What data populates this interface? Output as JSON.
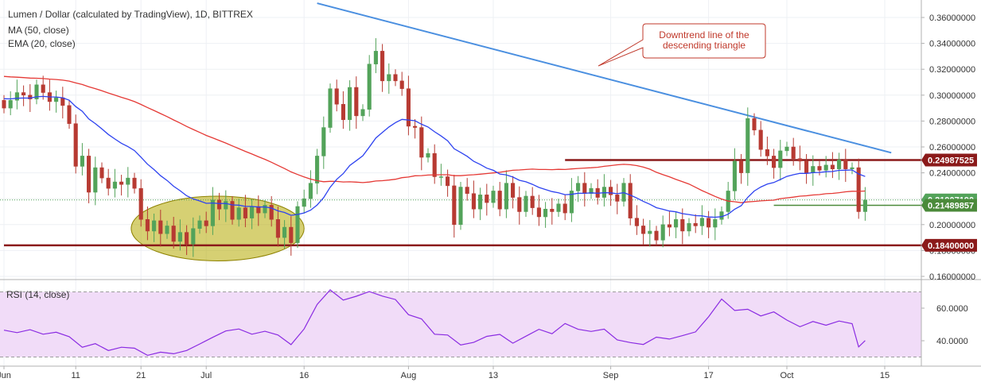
{
  "header": {
    "title": "Lumen / Dollar (calculated by TradingView), 1D, BITTREX",
    "ma_label": "MA (50, close)",
    "ema_label": "EMA (20, close)"
  },
  "annotation": {
    "text_line1": "Downtrend line of the",
    "text_line2": "descending triangle"
  },
  "colors": {
    "up": "#53a35a",
    "down": "#b73a32",
    "ma": "#e53935",
    "ema": "#2e43f0",
    "trendline": "#4a8fe0",
    "support_resistance": "#8b1a1a",
    "green_line": "#4b8a3a",
    "ellipse_fill": "#b5a900",
    "rsi_line": "#8a2be2",
    "rsi_fill": "#f1dcf8"
  },
  "chart_data": [
    {
      "type": "candlestick",
      "title": "Lumen / Dollar (calculated by TradingView), 1D, BITTREX",
      "x_tick_labels": [
        "Jun",
        "11",
        "21",
        "Jul",
        "16",
        "Aug",
        "13",
        "Sep",
        "17",
        "Oct",
        "15"
      ],
      "y_tick_labels": [
        "0.36000000",
        "0.34000000",
        "0.32000000",
        "0.30000000",
        "0.28000000",
        "0.26000000",
        "0.24000000",
        "0.22000000",
        "0.20000000",
        "0.18000000",
        "0.16000000"
      ],
      "ylim": [
        0.152,
        0.368
      ],
      "grid": true,
      "price_labels": [
        {
          "value": 0.24987525,
          "text": "0.24987525",
          "kind": "resistance"
        },
        {
          "value": 0.2190719,
          "text": "0.21907190",
          "kind": "last"
        },
        {
          "value": 0.21489857,
          "text": "0.21489857",
          "kind": "level"
        },
        {
          "value": 0.184,
          "text": "0.18400000",
          "kind": "support"
        }
      ],
      "horizontal_lines": [
        {
          "name": "resistance",
          "value": 0.2499,
          "from_day": 86,
          "to_day": 135
        },
        {
          "name": "support",
          "value": 0.184,
          "from_day": 0,
          "to_day": 135
        },
        {
          "name": "minor",
          "value": 0.2149,
          "from_day": 118,
          "to_day": 135
        }
      ],
      "trendline": {
        "day1": 48,
        "value1": 0.371,
        "day2": 136,
        "value2": 0.2555
      },
      "highlight_ellipse": {
        "day_from": 19.5,
        "day_to": 46,
        "value_from": 0.172,
        "value_to": 0.222
      },
      "candles_close": [
        0.29,
        0.296,
        0.302,
        0.3,
        0.297,
        0.308,
        0.302,
        0.295,
        0.298,
        0.292,
        0.278,
        0.245,
        0.253,
        0.225,
        0.244,
        0.236,
        0.228,
        0.233,
        0.231,
        0.236,
        0.228,
        0.204,
        0.195,
        0.203,
        0.193,
        0.199,
        0.187,
        0.194,
        0.185,
        0.197,
        0.203,
        0.199,
        0.219,
        0.212,
        0.218,
        0.204,
        0.213,
        0.205,
        0.214,
        0.209,
        0.215,
        0.204,
        0.19,
        0.198,
        0.186,
        0.214,
        0.22,
        0.232,
        0.253,
        0.275,
        0.305,
        0.293,
        0.281,
        0.306,
        0.284,
        0.289,
        0.324,
        0.334,
        0.311,
        0.316,
        0.311,
        0.305,
        0.276,
        0.275,
        0.252,
        0.255,
        0.237,
        0.237,
        0.23,
        0.2,
        0.229,
        0.224,
        0.212,
        0.223,
        0.217,
        0.226,
        0.212,
        0.232,
        0.221,
        0.21,
        0.222,
        0.213,
        0.206,
        0.212,
        0.21,
        0.216,
        0.209,
        0.226,
        0.232,
        0.224,
        0.228,
        0.221,
        0.229,
        0.223,
        0.218,
        0.232,
        0.205,
        0.199,
        0.193,
        0.195,
        0.188,
        0.2,
        0.198,
        0.204,
        0.195,
        0.201,
        0.199,
        0.205,
        0.198,
        0.204,
        0.21,
        0.226,
        0.249,
        0.24,
        0.282,
        0.273,
        0.258,
        0.253,
        0.244,
        0.257,
        0.26,
        0.251,
        0.249,
        0.24,
        0.245,
        0.242,
        0.246,
        0.243,
        0.25,
        0.243,
        0.244,
        0.21,
        0.219
      ]
    },
    {
      "type": "line",
      "title": "RSI (14, close)",
      "y_tick_labels": [
        "60.0000",
        "40.0000"
      ],
      "ylim": [
        26,
        78
      ],
      "band": [
        30,
        70
      ],
      "rsi_points": [
        [
          0,
          46.5
        ],
        [
          2,
          45
        ],
        [
          4,
          46.8
        ],
        [
          6,
          44
        ],
        [
          8,
          45.2
        ],
        [
          10,
          42.5
        ],
        [
          12,
          36
        ],
        [
          14,
          38.2
        ],
        [
          16,
          34
        ],
        [
          18,
          36
        ],
        [
          20,
          35.4
        ],
        [
          22,
          31
        ],
        [
          24,
          33
        ],
        [
          26,
          32
        ],
        [
          28,
          34
        ],
        [
          30,
          38
        ],
        [
          32,
          42.1
        ],
        [
          34,
          46
        ],
        [
          36,
          47.2
        ],
        [
          38,
          44
        ],
        [
          40,
          45.8
        ],
        [
          42,
          43.5
        ],
        [
          44,
          37.6
        ],
        [
          46,
          47.2
        ],
        [
          48,
          62.3
        ],
        [
          50,
          71.2
        ],
        [
          52,
          65
        ],
        [
          54,
          67.3
        ],
        [
          56,
          70.2
        ],
        [
          58,
          67.4
        ],
        [
          60,
          65.3
        ],
        [
          62,
          56
        ],
        [
          64,
          53.4
        ],
        [
          66,
          44
        ],
        [
          68,
          43.5
        ],
        [
          70,
          37.4
        ],
        [
          72,
          39
        ],
        [
          74,
          42.7
        ],
        [
          76,
          43.9
        ],
        [
          78,
          38.5
        ],
        [
          80,
          42.8
        ],
        [
          82,
          47
        ],
        [
          84,
          44.3
        ],
        [
          86,
          50.6
        ],
        [
          88,
          47
        ],
        [
          90,
          45.7
        ],
        [
          92,
          47.1
        ],
        [
          94,
          40.5
        ],
        [
          96,
          38.9
        ],
        [
          98,
          37.7
        ],
        [
          100,
          42.2
        ],
        [
          102,
          41
        ],
        [
          104,
          43.1
        ],
        [
          106,
          45.4
        ],
        [
          108,
          54.7
        ],
        [
          110,
          65.6
        ],
        [
          112,
          58.6
        ],
        [
          114,
          59.3
        ],
        [
          116,
          55.2
        ],
        [
          118,
          57.7
        ],
        [
          120,
          52.7
        ],
        [
          122,
          48.6
        ],
        [
          124,
          51.8
        ],
        [
          126,
          49.5
        ],
        [
          128,
          52.1
        ],
        [
          130,
          50.5
        ],
        [
          131,
          36.2
        ],
        [
          132,
          40.1
        ]
      ]
    }
  ]
}
